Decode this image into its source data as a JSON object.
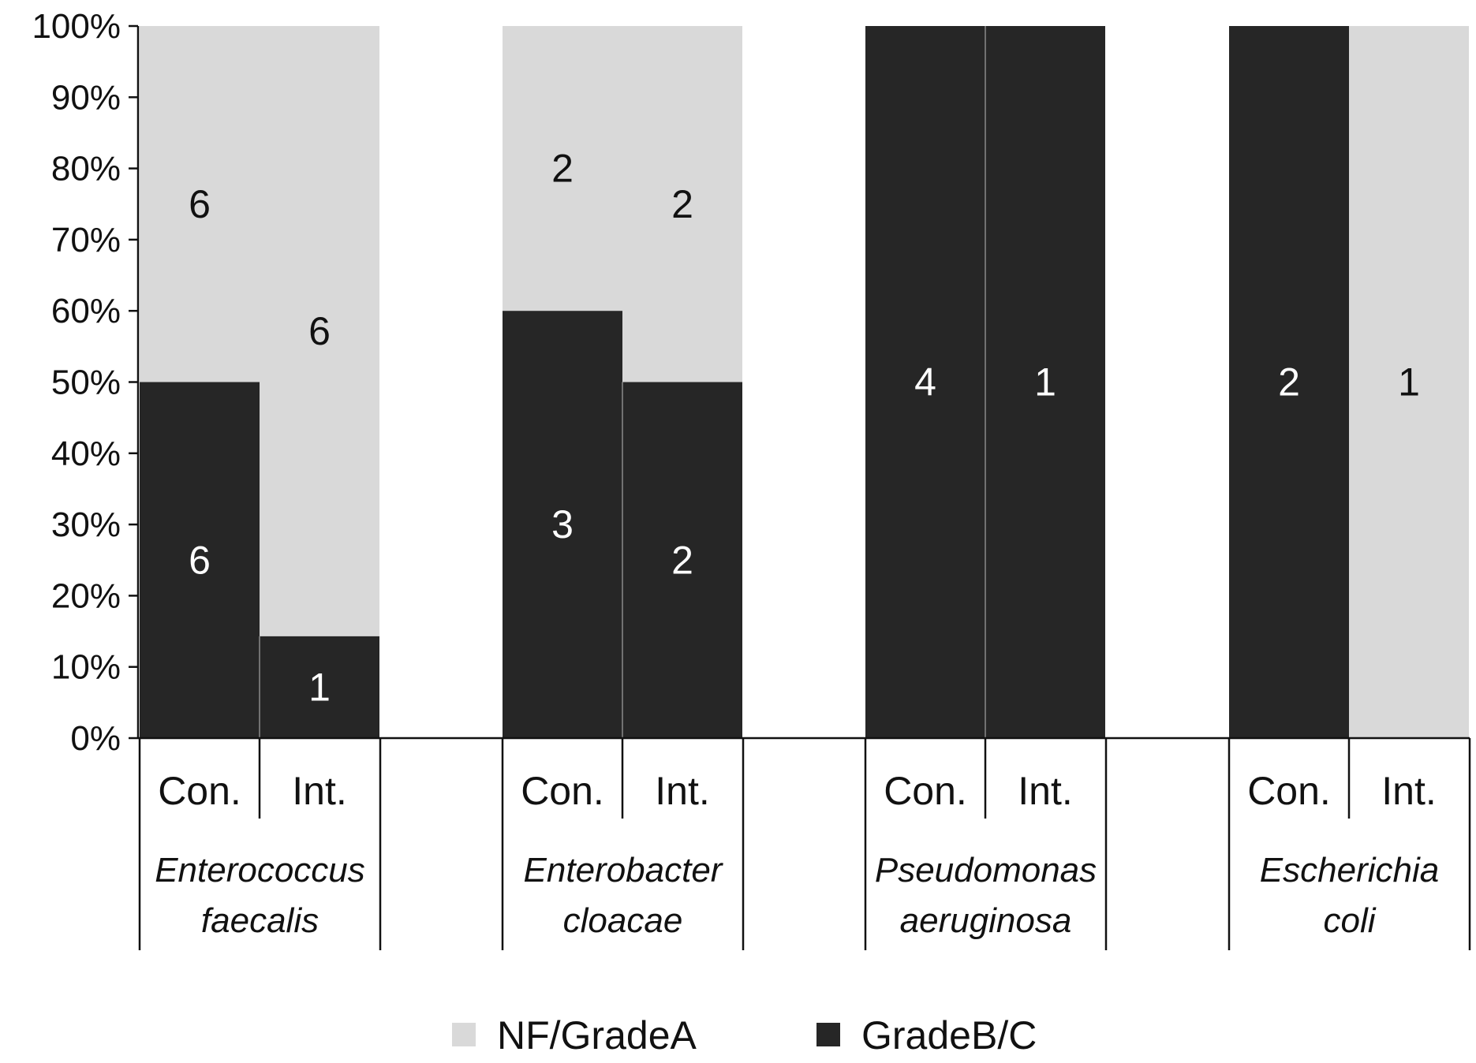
{
  "chart_data": {
    "type": "bar",
    "stacked": true,
    "y_format": "percent",
    "ylim": [
      0,
      100
    ],
    "y_ticks": [
      "0%",
      "10%",
      "20%",
      "30%",
      "40%",
      "50%",
      "60%",
      "70%",
      "80%",
      "90%",
      "100%"
    ],
    "groups": [
      {
        "line1": "Enterococcus",
        "line2": "faecalis",
        "bars": [
          {
            "category": "Con.",
            "GradeBC_pct": 50,
            "NF_pct": 50,
            "GradeBC_count": "6",
            "NF_count": "6"
          },
          {
            "category": "Int.",
            "GradeBC_pct": 14.3,
            "NF_pct": 85.7,
            "GradeBC_count": "1",
            "NF_count": "6"
          }
        ]
      },
      {
        "line1": "Enterobacter",
        "line2": "cloacae",
        "bars": [
          {
            "category": "Con.",
            "GradeBC_pct": 60,
            "NF_pct": 40,
            "GradeBC_count": "3",
            "NF_count": "2"
          },
          {
            "category": "Int.",
            "GradeBC_pct": 50,
            "NF_pct": 50,
            "GradeBC_count": "2",
            "NF_count": "2"
          }
        ]
      },
      {
        "line1": "Pseudomonas",
        "line2": "aeruginosa",
        "bars": [
          {
            "category": "Con.",
            "GradeBC_pct": 100,
            "NF_pct": 0,
            "GradeBC_count": "4",
            "NF_count": ""
          },
          {
            "category": "Int.",
            "GradeBC_pct": 100,
            "NF_pct": 0,
            "GradeBC_count": "1",
            "NF_count": ""
          }
        ]
      },
      {
        "line1": "Escherichia",
        "line2": "coli",
        "bars": [
          {
            "category": "Con.",
            "GradeBC_pct": 100,
            "NF_pct": 0,
            "GradeBC_count": "2",
            "NF_count": ""
          },
          {
            "category": "Int.",
            "GradeBC_pct": 0,
            "NF_pct": 100,
            "GradeBC_count": "",
            "NF_count": "1"
          }
        ]
      }
    ],
    "legend": {
      "position": "bottom",
      "items": [
        {
          "name": "NF/GradeA",
          "color": "#d9d9d9"
        },
        {
          "name": "GradeB/C",
          "color": "#262626"
        }
      ]
    },
    "colors": {
      "nf": "#d9d9d9",
      "gradebc": "#262626",
      "axis": "#111111",
      "text_on_dark": "#ffffff",
      "text_on_light": "#111111"
    }
  }
}
